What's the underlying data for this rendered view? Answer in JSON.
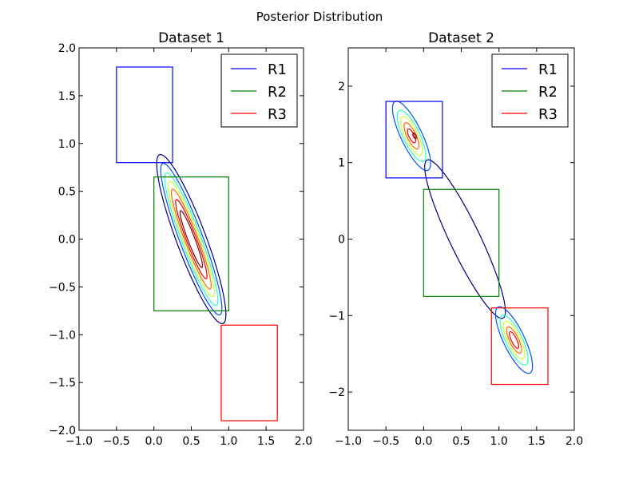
{
  "suptitle": "Posterior Distribution",
  "chart_data": [
    {
      "type": "contour",
      "title": "Dataset 1",
      "xlim": [
        -1.0,
        2.0
      ],
      "ylim": [
        -2.0,
        2.0
      ],
      "xticks": [
        -1.0,
        -0.5,
        0.0,
        0.5,
        1.0,
        1.5,
        2.0
      ],
      "xtick_labels": [
        "−1.0",
        "−0.5",
        "0.0",
        "0.5",
        "1.0",
        "1.5",
        "2.0"
      ],
      "yticks": [
        -2.0,
        -1.5,
        -1.0,
        -0.5,
        0.0,
        0.5,
        1.0,
        1.5,
        2.0
      ],
      "ytick_labels": [
        "−2.0",
        "−1.5",
        "−1.0",
        "−0.5",
        "0.0",
        "0.5",
        "1.0",
        "1.5",
        "2.0"
      ],
      "legend_position": "top-right",
      "regions": [
        {
          "name": "R1",
          "color": "#0000ff",
          "x": [
            -0.5,
            0.25
          ],
          "y": [
            0.8,
            1.8
          ]
        },
        {
          "name": "R2",
          "color": "#008000",
          "x": [
            0.0,
            1.0
          ],
          "y": [
            -0.75,
            0.65
          ]
        },
        {
          "name": "R3",
          "color": "#ff0000",
          "x": [
            0.9,
            1.65
          ],
          "y": [
            -1.9,
            -0.9
          ]
        }
      ],
      "contours": [
        {
          "color": "#00007f",
          "center": [
            0.5,
            0.0
          ],
          "slope": -2.05,
          "half_length": 0.98,
          "half_width": 0.19
        },
        {
          "color": "#0050ff",
          "center": [
            0.5,
            0.0
          ],
          "slope": -2.05,
          "half_length": 0.88,
          "half_width": 0.15
        },
        {
          "color": "#29ffce",
          "center": [
            0.5,
            0.0
          ],
          "slope": -2.05,
          "half_length": 0.77,
          "half_width": 0.125
        },
        {
          "color": "#ceff29",
          "center": [
            0.5,
            0.0
          ],
          "slope": -2.05,
          "half_length": 0.67,
          "half_width": 0.105
        },
        {
          "color": "#ff6800",
          "center": [
            0.5,
            0.0
          ],
          "slope": -2.05,
          "half_length": 0.58,
          "half_width": 0.085
        },
        {
          "color": "#e60000",
          "center": [
            0.5,
            0.0
          ],
          "slope": -2.05,
          "half_length": 0.46,
          "half_width": 0.065
        },
        {
          "color": "#7f0000",
          "center": [
            0.5,
            0.0
          ],
          "slope": -2.05,
          "half_length": 0.33,
          "half_width": 0.045
        }
      ]
    },
    {
      "type": "contour",
      "title": "Dataset 2",
      "xlim": [
        -1.0,
        2.0
      ],
      "ylim": [
        -2.5,
        2.5
      ],
      "xticks": [
        -1.0,
        -0.5,
        0.0,
        0.5,
        1.0,
        1.5,
        2.0
      ],
      "xtick_labels": [
        "−1.0",
        "−0.5",
        "0.0",
        "0.5",
        "1.0",
        "1.5",
        "2.0"
      ],
      "yticks": [
        -2,
        -1,
        0,
        1,
        2
      ],
      "ytick_labels": [
        "−2",
        "−1",
        "0",
        "1",
        "2"
      ],
      "legend_position": "top-right",
      "regions": [
        {
          "name": "R1",
          "color": "#0000ff",
          "x": [
            -0.5,
            0.25
          ],
          "y": [
            0.8,
            1.8
          ]
        },
        {
          "name": "R2",
          "color": "#008000",
          "x": [
            0.0,
            1.0
          ],
          "y": [
            -0.75,
            0.65
          ]
        },
        {
          "name": "R3",
          "color": "#ff0000",
          "x": [
            0.9,
            1.65
          ],
          "y": [
            -1.9,
            -0.9
          ]
        }
      ],
      "contours": [
        {
          "color": "#00007f",
          "center": [
            0.55,
            0.0
          ],
          "slope": -2.05,
          "half_length": 1.15,
          "half_width": 0.2
        },
        {
          "color": "#0050ff",
          "center": [
            -0.16,
            1.35
          ],
          "slope": -2.05,
          "half_length": 0.5,
          "half_width": 0.14
        },
        {
          "color": "#29ffce",
          "center": [
            -0.16,
            1.35
          ],
          "slope": -2.05,
          "half_length": 0.37,
          "half_width": 0.11
        },
        {
          "color": "#ceff29",
          "center": [
            -0.16,
            1.35
          ],
          "slope": -2.05,
          "half_length": 0.28,
          "half_width": 0.085
        },
        {
          "color": "#ff6800",
          "center": [
            -0.16,
            1.35
          ],
          "slope": -2.05,
          "half_length": 0.19,
          "half_width": 0.06
        },
        {
          "color": "#e60000",
          "center": [
            -0.16,
            1.35
          ],
          "slope": -2.05,
          "half_length": 0.1,
          "half_width": 0.035
        },
        {
          "color": "#7f0000",
          "center": [
            -0.12,
            1.35
          ],
          "slope": -2.05,
          "half_length": 0.04,
          "half_width": 0.018
        },
        {
          "color": "#0050ff",
          "center": [
            1.2,
            -1.32
          ],
          "slope": -2.05,
          "half_length": 0.48,
          "half_width": 0.14
        },
        {
          "color": "#29ffce",
          "center": [
            1.2,
            -1.32
          ],
          "slope": -2.05,
          "half_length": 0.36,
          "half_width": 0.11
        },
        {
          "color": "#ceff29",
          "center": [
            1.2,
            -1.32
          ],
          "slope": -2.05,
          "half_length": 0.27,
          "half_width": 0.085
        },
        {
          "color": "#ff6800",
          "center": [
            1.2,
            -1.32
          ],
          "slope": -2.05,
          "half_length": 0.19,
          "half_width": 0.06
        },
        {
          "color": "#e60000",
          "center": [
            1.2,
            -1.32
          ],
          "slope": -2.05,
          "half_length": 0.12,
          "half_width": 0.035
        }
      ]
    }
  ]
}
